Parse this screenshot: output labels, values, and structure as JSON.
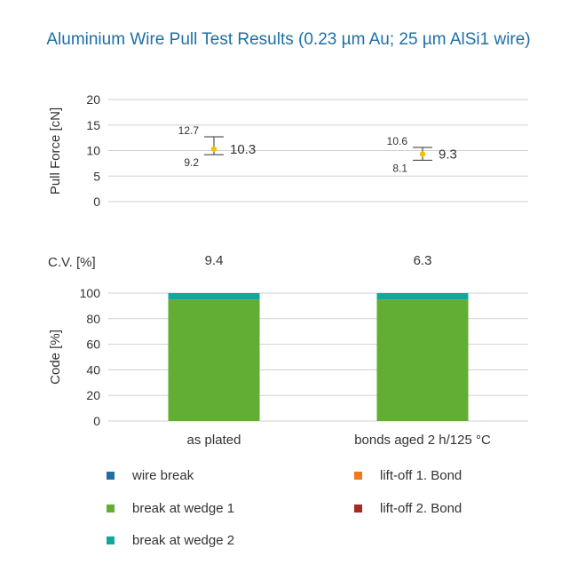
{
  "chart_data": [
    {
      "type": "scatter",
      "title": "Aluminium Wire Pull Test Results (0.23 µm Au; 25 µm AlSi1 wire)",
      "ylabel": "Pull Force [cN]",
      "ylim": [
        0,
        20
      ],
      "yticks": [
        "0",
        "5",
        "10",
        "15",
        "20"
      ],
      "categories": [
        "as plated",
        "bonds aged 2 h/125 °C"
      ],
      "points": [
        {
          "category": "as plated",
          "mean": 10.3,
          "max": 12.7,
          "min": 9.2,
          "mean_label": "10.3",
          "max_label": "12.7",
          "min_label": "9.2"
        },
        {
          "category": "bonds aged 2 h/125 °C",
          "mean": 9.3,
          "max": 10.6,
          "min": 8.1,
          "mean_label": "9.3",
          "max_label": "10.6",
          "min_label": "8.1"
        }
      ],
      "grid": true,
      "marker_color": "#f2c200"
    },
    {
      "type": "table",
      "row_label": "C.V. [%]",
      "categories": [
        "as plated",
        "bonds aged 2 h/125 °C"
      ],
      "values": [
        "9.4",
        "6.3"
      ]
    },
    {
      "type": "bar",
      "stacked": true,
      "ylabel": "Code [%]",
      "ylim": [
        0,
        100
      ],
      "yticks": [
        "0",
        "20",
        "40",
        "60",
        "80",
        "100"
      ],
      "categories": [
        "as plated",
        "bonds aged 2 h/125 °C"
      ],
      "series": [
        {
          "name": "wire break",
          "color": "#1f6fa3",
          "values": [
            0,
            0
          ]
        },
        {
          "name": "break at wedge 1",
          "color": "#62ad33",
          "values": [
            95,
            95
          ]
        },
        {
          "name": "break at wedge 2",
          "color": "#12a79c",
          "values": [
            5,
            5
          ]
        },
        {
          "name": "lift-off 1. Bond",
          "color": "#ee7a1d",
          "values": [
            0,
            0
          ]
        },
        {
          "name": "lift-off 2. Bond",
          "color": "#a52a24",
          "values": [
            0,
            0
          ]
        }
      ],
      "grid": true,
      "legend_position": "bottom"
    }
  ],
  "legend": [
    {
      "label": "wire break",
      "color": "#1f6fa3"
    },
    {
      "label": "lift-off 1. Bond",
      "color": "#ee7a1d"
    },
    {
      "label": "break at wedge 1",
      "color": "#62ad33"
    },
    {
      "label": "lift-off 2. Bond",
      "color": "#a52a24"
    },
    {
      "label": "break at wedge 2",
      "color": "#12a79c"
    }
  ]
}
